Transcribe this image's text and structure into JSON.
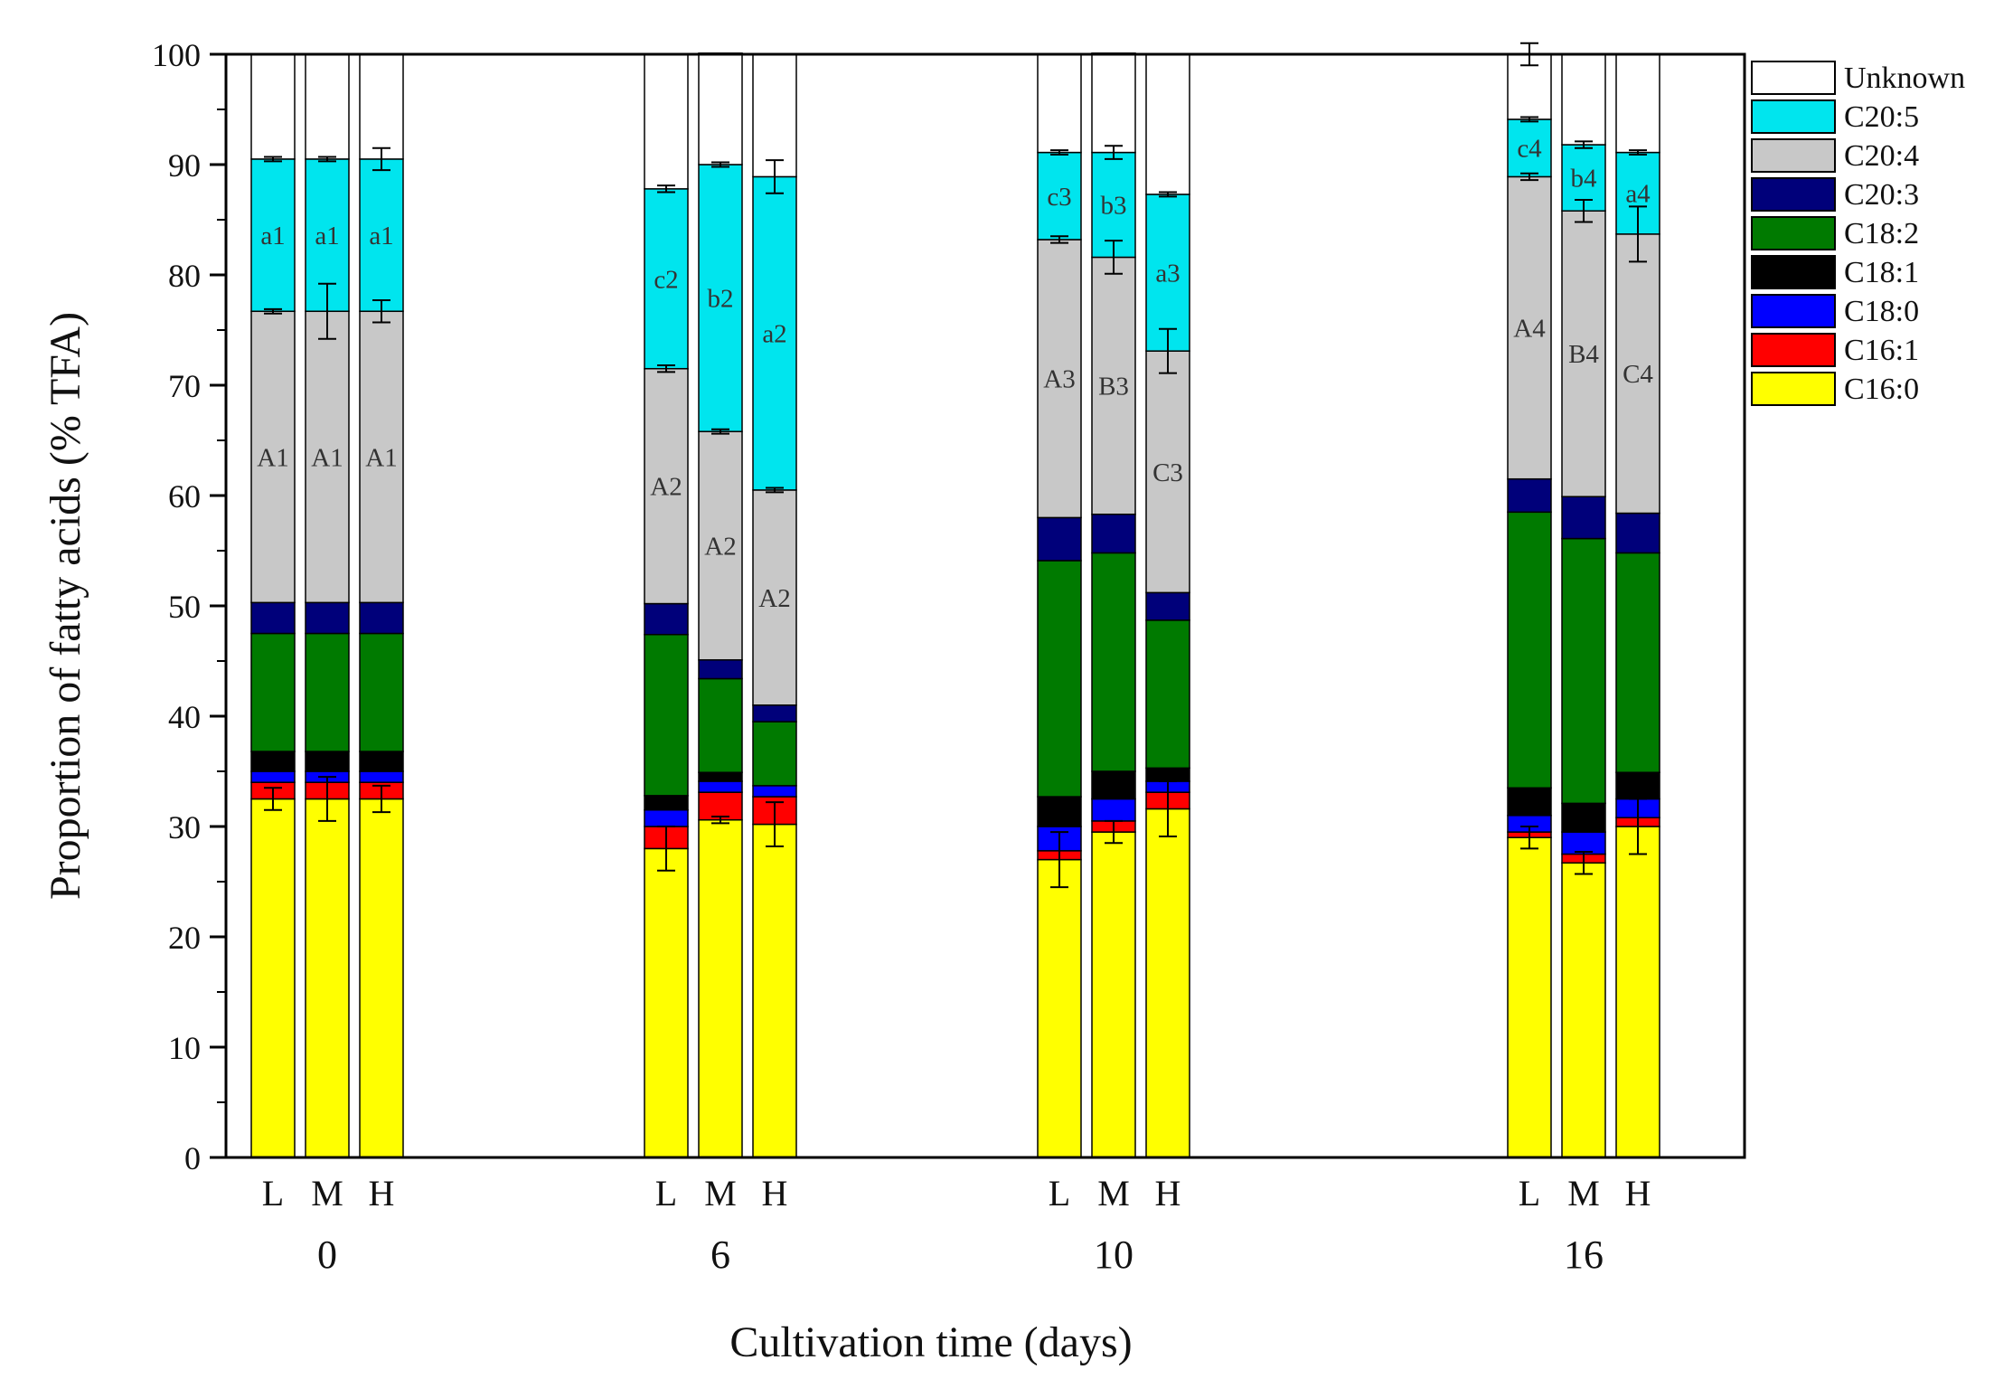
{
  "chart_data": {
    "type": "bar",
    "stacked": true,
    "title": "",
    "xlabel": "Cultivation time (days)",
    "ylabel": "Proportion of fatty acids (% TFA)",
    "ylim": [
      0,
      100
    ],
    "yticks": [
      "0",
      "10",
      "20",
      "30",
      "40",
      "50",
      "60",
      "70",
      "80",
      "90",
      "100"
    ],
    "legend_position": "outside-right-top",
    "groups": [
      "0",
      "6",
      "10",
      "16"
    ],
    "conditions": [
      "L",
      "M",
      "H"
    ],
    "categories": [
      "L-0",
      "M-0",
      "H-0",
      "L-6",
      "M-6",
      "H-6",
      "L-10",
      "M-10",
      "H-10",
      "L-16",
      "M-16",
      "H-16"
    ],
    "colors": {
      "C16:0": "#ffff00",
      "C16:1": "#ff0000",
      "C18:0": "#0000ff",
      "C18:1": "#000000",
      "C18:2": "#007a00",
      "C20:3": "#00007a",
      "C20:4": "#c8c8c8",
      "C20:5": "#00e5ee",
      "Unknown": "#ffffff"
    },
    "legend": [
      "Unknown",
      "C20:5",
      "C20:4",
      "C20:3",
      "C18:2",
      "C18:1",
      "C18:0",
      "C16:1",
      "C16:0"
    ],
    "series": [
      {
        "name": "C16:0",
        "values": [
          32.5,
          32.5,
          32.5,
          28.0,
          30.6,
          30.2,
          27.0,
          29.5,
          31.6,
          29.0,
          26.7,
          30.0
        ],
        "errors": [
          1.0,
          2.0,
          1.2,
          2.0,
          0.3,
          2.0,
          2.5,
          1.0,
          2.5,
          1.0,
          1.0,
          2.5
        ]
      },
      {
        "name": "C16:1",
        "values": [
          1.5,
          1.5,
          1.5,
          2.0,
          2.5,
          2.5,
          0.8,
          1.0,
          1.5,
          0.5,
          0.8,
          0.8
        ]
      },
      {
        "name": "C18:0",
        "values": [
          1.0,
          1.0,
          1.0,
          1.5,
          1.0,
          1.0,
          2.2,
          2.0,
          1.0,
          1.5,
          2.0,
          1.7
        ]
      },
      {
        "name": "C18:1",
        "values": [
          1.8,
          1.8,
          1.8,
          1.3,
          0.8,
          0.0,
          2.7,
          2.5,
          1.2,
          2.5,
          2.6,
          2.4
        ]
      },
      {
        "name": "C18:2",
        "values": [
          10.7,
          10.7,
          10.7,
          14.6,
          8.5,
          5.8,
          21.4,
          19.8,
          13.4,
          25.0,
          24.0,
          19.9
        ]
      },
      {
        "name": "C20:3",
        "values": [
          2.8,
          2.8,
          2.8,
          2.8,
          1.7,
          1.5,
          3.9,
          3.5,
          2.5,
          3.0,
          3.8,
          3.6
        ]
      },
      {
        "name": "C20:4",
        "values": [
          26.4,
          26.4,
          26.4,
          21.3,
          20.7,
          19.5,
          25.2,
          23.3,
          21.9,
          27.4,
          25.9,
          25.3
        ],
        "errors": [
          0.2,
          2.5,
          1.0,
          0.3,
          0.2,
          0.2,
          0.3,
          1.5,
          2.0,
          0.3,
          1.0,
          2.5
        ]
      },
      {
        "name": "C20:5",
        "values": [
          13.8,
          13.8,
          13.8,
          16.3,
          24.2,
          28.4,
          7.9,
          9.5,
          14.2,
          5.2,
          6.0,
          7.4
        ],
        "errors": [
          0.2,
          0.2,
          1.0,
          0.3,
          0.2,
          1.5,
          0.2,
          0.6,
          0.2,
          0.2,
          0.3,
          0.2
        ]
      },
      {
        "name": "Unknown",
        "values": [
          9.5,
          9.5,
          9.5,
          12.2,
          10.1,
          11.1,
          8.9,
          9.0,
          12.7,
          5.9,
          8.2,
          8.9
        ],
        "errors": [
          0,
          0,
          0,
          0,
          0,
          0,
          0,
          0,
          0,
          1.0,
          0,
          0
        ]
      }
    ],
    "annotations": [
      {
        "series": "C20:5",
        "labels": [
          "a1",
          "a1",
          "a1",
          "c2",
          "b2",
          "a2",
          "c3",
          "b3",
          "a3",
          "c4",
          "b4",
          "a4"
        ]
      },
      {
        "series": "C20:4",
        "labels": [
          "A1",
          "A1",
          "A1",
          "A2",
          "A2",
          "A2",
          "A3",
          "B3",
          "C3",
          "A4",
          "B4",
          "C4"
        ]
      }
    ]
  }
}
